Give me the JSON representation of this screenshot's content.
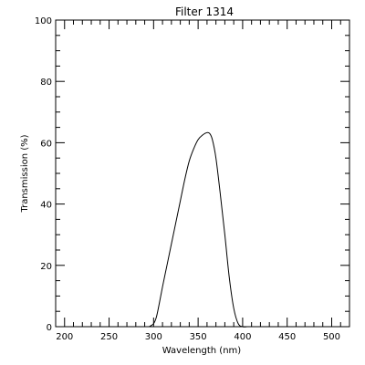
{
  "chart_data": {
    "type": "line",
    "title": "Filter  1314",
    "xlabel": "Wavelength (nm)",
    "ylabel": "Transmission (%)",
    "xlim": [
      190,
      520
    ],
    "ylim": [
      0,
      100
    ],
    "grid": false,
    "legend": "none",
    "line_color": "#000000",
    "x_ticks": [
      200,
      250,
      300,
      350,
      400,
      450,
      500
    ],
    "x_tick_labels": [
      "200",
      "250",
      "300",
      "350",
      "400",
      "450",
      "500"
    ],
    "y_ticks": [
      0,
      20,
      40,
      60,
      80,
      100
    ],
    "y_tick_labels": [
      "0",
      "20",
      "40",
      "60",
      "80",
      "100"
    ],
    "series": [
      {
        "x": [
          295,
          300,
          303,
          306,
          310,
          315,
          320,
          325,
          330,
          335,
          340,
          345,
          350,
          355,
          360,
          363,
          366,
          370,
          375,
          380,
          385,
          390,
          395,
          400,
          405
        ],
        "y": [
          0,
          1,
          3,
          7,
          13,
          20,
          27,
          34,
          41,
          48,
          54,
          58,
          61,
          62.5,
          63.3,
          63,
          61,
          55,
          43,
          30,
          16,
          6,
          1,
          0,
          0
        ]
      }
    ]
  }
}
